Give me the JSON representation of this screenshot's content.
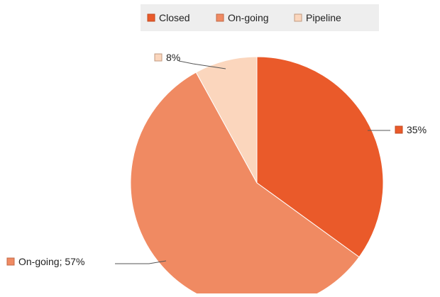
{
  "chart_data": {
    "type": "pie",
    "title": "",
    "legend_position": "top",
    "slices": [
      {
        "name": "Closed",
        "value": 35,
        "color": "#ea5a2a",
        "label": "35%"
      },
      {
        "name": "On-going",
        "value": 57,
        "color": "#f08a62",
        "label": "On-going; 57%"
      },
      {
        "name": "Pipeline",
        "value": 8,
        "color": "#fbd6bd",
        "label": "8%"
      }
    ],
    "legend": {
      "items": [
        {
          "name": "Closed",
          "color": "#ea5a2a"
        },
        {
          "name": "On-going",
          "color": "#f08a62"
        },
        {
          "name": "Pipeline",
          "color": "#fbd6bd"
        }
      ]
    }
  }
}
